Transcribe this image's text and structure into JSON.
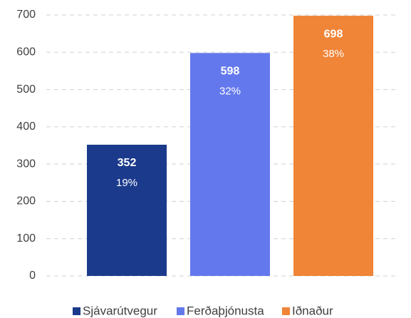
{
  "chart_data": {
    "type": "bar",
    "series": [
      {
        "name": "Sjávarútvegur",
        "color": "#1b3a8c",
        "values": [
          352
        ],
        "share_labels": [
          "19%"
        ]
      },
      {
        "name": "Ferðaþjónusta",
        "color": "#6378ed",
        "values": [
          598
        ],
        "share_labels": [
          "32%"
        ]
      },
      {
        "name": "Iðnaður",
        "color": "#f08437",
        "values": [
          698
        ],
        "share_labels": [
          "38%"
        ]
      }
    ],
    "ylim": [
      0,
      700
    ],
    "yticks": [
      0,
      100,
      200,
      300,
      400,
      500,
      600,
      700
    ],
    "grid": true,
    "legend": "bottom"
  }
}
